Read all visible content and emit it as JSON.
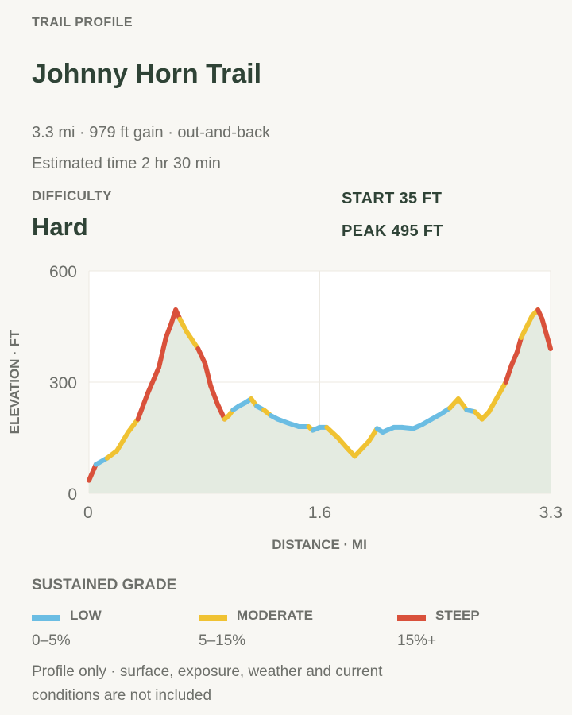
{
  "header": {
    "eyebrow": "TRAIL PROFILE",
    "title": "Johnny Horn Trail",
    "meta": "3.3 mi · 979 ft gain · out-and-back",
    "time": "Estimated time 2 hr 30 min"
  },
  "difficulty": {
    "label": "DIFFICULTY",
    "value": "Hard"
  },
  "stats": {
    "start": "START 35 FT",
    "peak": "PEAK 495 FT"
  },
  "chart_data": {
    "type": "area",
    "xlabel": "DISTANCE · MI",
    "ylabel": "ELEVATION · FT",
    "xlim": [
      0,
      3.3
    ],
    "ylim": [
      0,
      600
    ],
    "xticks": [
      "0",
      "1.6",
      "3.3"
    ],
    "xtick_values": [
      0,
      1.65,
      3.3
    ],
    "yticks": [
      "600",
      "300",
      "0"
    ],
    "ytick_values": [
      600,
      300,
      0
    ],
    "grid": true,
    "fill_color": "#e4ebe1",
    "grade_colors": {
      "low": "#6bbde3",
      "moderate": "#f0c232",
      "steep": "#d9513b"
    },
    "points": [
      [
        0.0,
        35
      ],
      [
        0.05,
        78
      ],
      [
        0.13,
        95
      ],
      [
        0.2,
        115
      ],
      [
        0.28,
        165
      ],
      [
        0.35,
        200
      ],
      [
        0.42,
        270
      ],
      [
        0.5,
        340
      ],
      [
        0.55,
        420
      ],
      [
        0.59,
        460
      ],
      [
        0.62,
        495
      ],
      [
        0.65,
        470
      ],
      [
        0.7,
        435
      ],
      [
        0.78,
        390
      ],
      [
        0.83,
        350
      ],
      [
        0.87,
        290
      ],
      [
        0.92,
        240
      ],
      [
        0.97,
        200
      ],
      [
        1.0,
        210
      ],
      [
        1.03,
        225
      ],
      [
        1.07,
        235
      ],
      [
        1.12,
        245
      ],
      [
        1.16,
        255
      ],
      [
        1.2,
        235
      ],
      [
        1.25,
        225
      ],
      [
        1.3,
        210
      ],
      [
        1.35,
        200
      ],
      [
        1.42,
        190
      ],
      [
        1.5,
        180
      ],
      [
        1.57,
        180
      ],
      [
        1.6,
        170
      ],
      [
        1.65,
        178
      ],
      [
        1.7,
        178
      ],
      [
        1.78,
        150
      ],
      [
        1.85,
        120
      ],
      [
        1.9,
        100
      ],
      [
        1.95,
        120
      ],
      [
        2.0,
        140
      ],
      [
        2.06,
        175
      ],
      [
        2.1,
        165
      ],
      [
        2.13,
        170
      ],
      [
        2.18,
        178
      ],
      [
        2.24,
        178
      ],
      [
        2.32,
        175
      ],
      [
        2.38,
        185
      ],
      [
        2.45,
        200
      ],
      [
        2.52,
        215
      ],
      [
        2.58,
        230
      ],
      [
        2.64,
        255
      ],
      [
        2.7,
        225
      ],
      [
        2.76,
        220
      ],
      [
        2.81,
        200
      ],
      [
        2.86,
        220
      ],
      [
        2.92,
        260
      ],
      [
        2.98,
        300
      ],
      [
        3.02,
        345
      ],
      [
        3.06,
        380
      ],
      [
        3.09,
        420
      ],
      [
        3.13,
        450
      ],
      [
        3.17,
        480
      ],
      [
        3.21,
        495
      ],
      [
        3.24,
        470
      ],
      [
        3.27,
        430
      ],
      [
        3.3,
        390
      ]
    ],
    "xs_note": ""
  },
  "legend": {
    "title": "SUSTAINED GRADE",
    "items": [
      {
        "name": "LOW",
        "range": "0–5%",
        "color": "#6bbde3"
      },
      {
        "name": "MODERATE",
        "range": "5–15%",
        "color": "#f0c232"
      },
      {
        "name": "STEEP",
        "range": "15%+",
        "color": "#d9513b"
      }
    ]
  },
  "note": "Profile only · surface, exposure, weather and current conditions are not included"
}
